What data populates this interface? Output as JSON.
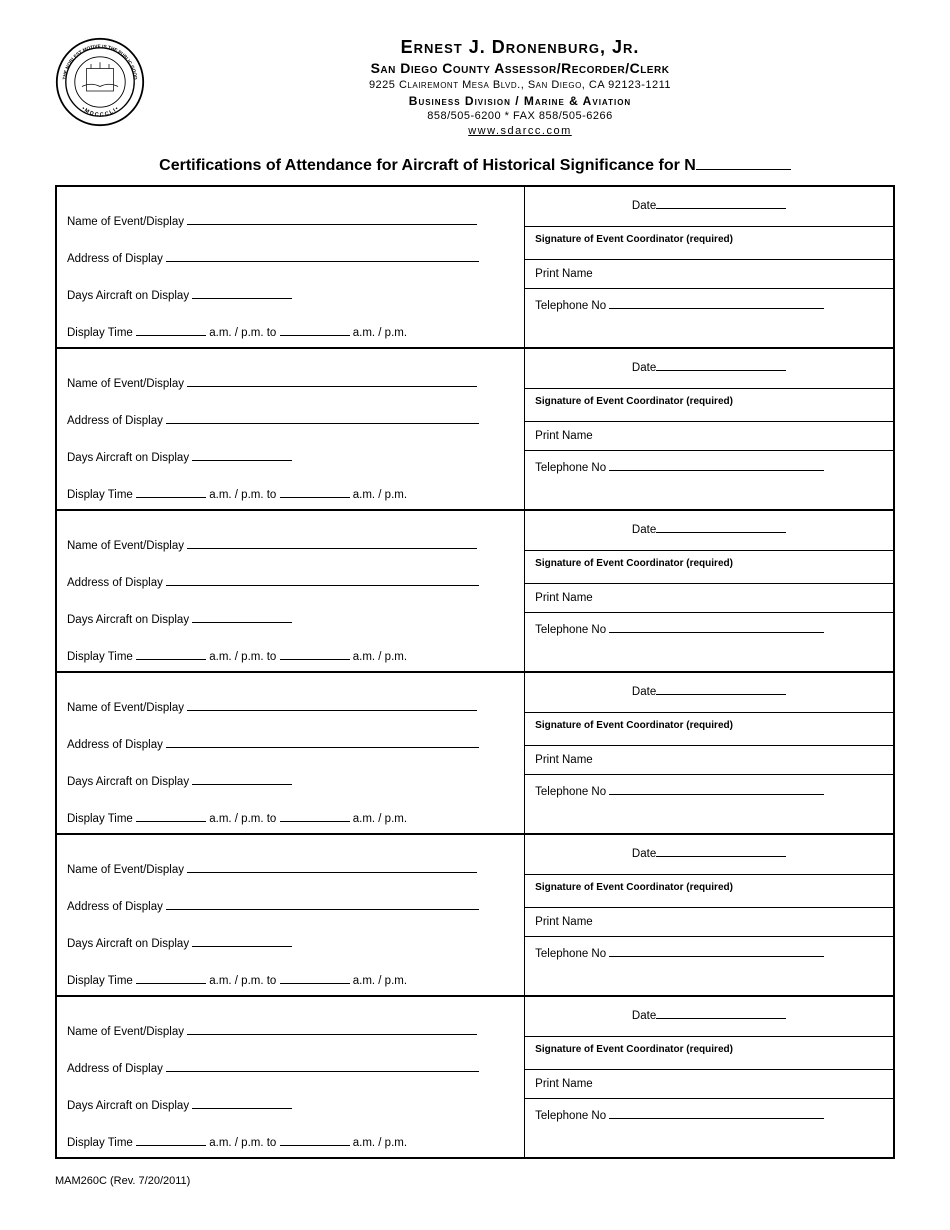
{
  "header": {
    "name": "Ernest J. Dronenburg, Jr.",
    "title": "San Diego County Assessor/Recorder/Clerk",
    "address": "9225 Clairemont Mesa Blvd., San Diego, CA 92123-1211",
    "division": "Business Division / Marine & Aviation",
    "phone": "858/505-6200 * FAX 858/505-6266",
    "url": "www.sdarcc.com"
  },
  "form_title": "Certifications of Attendance for Aircraft of Historical Significance for N",
  "labels": {
    "event": "Name of Event/Display",
    "address": "Address of Display",
    "days": "Days Aircraft on Display",
    "time_prefix": "Display Time",
    "time_mid": "a.m. / p.m. to",
    "time_suffix": "a.m. / p.m.",
    "date": "Date",
    "signature": "Signature of Event Coordinator (required)",
    "print_name": "Print Name",
    "telephone": "Telephone No"
  },
  "footer": "MAM260C (Rev. 7/20/2011)",
  "seal": {
    "outer_text_top": "THE NOBLEST MOTIVE IS THE PUBLIC",
    "outer_text_bottom": "GOOD",
    "year": "MDCCCLI"
  },
  "row_count": 6
}
